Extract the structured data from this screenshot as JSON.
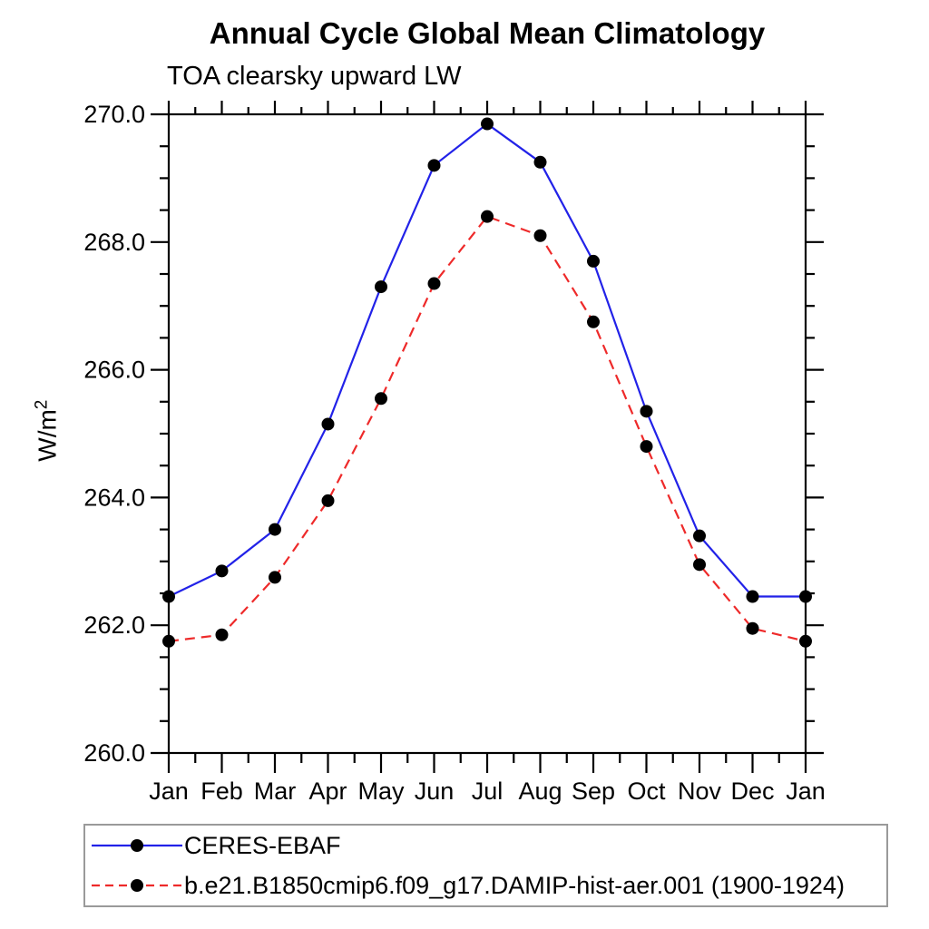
{
  "chart_data": {
    "type": "line",
    "title": "Annual Cycle Global Mean Climatology",
    "subtitle": "TOA clearsky upward LW",
    "ylabel_base": "W/m",
    "ylabel_exp": "2",
    "x_categories": [
      "Jan",
      "Feb",
      "Mar",
      "Apr",
      "May",
      "Jun",
      "Jul",
      "Aug",
      "Sep",
      "Oct",
      "Nov",
      "Dec",
      "Jan"
    ],
    "ylim": [
      260.0,
      270.0
    ],
    "y_ticks": [
      260.0,
      262.0,
      264.0,
      266.0,
      268.0,
      270.0
    ],
    "y_tick_labels": [
      "260.0",
      "262.0",
      "264.0",
      "266.0",
      "268.0",
      "270.0"
    ],
    "y_minor_step": 0.5,
    "grid": false,
    "legend_position": "bottom-left-box",
    "axis_color": "#000000",
    "marker_color": "#000000",
    "series": [
      {
        "name": "CERES-EBAF",
        "color": "#2222e8",
        "line_style": "solid",
        "marker": "circle",
        "values": [
          262.45,
          262.85,
          263.5,
          265.15,
          267.3,
          269.2,
          269.85,
          269.25,
          267.7,
          265.35,
          263.4,
          262.45,
          262.45
        ]
      },
      {
        "name": "b.e21.B1850cmip6.f09_g17.DAMIP-hist-aer.001 (1900-1924)",
        "color": "#ee2a2a",
        "line_style": "dashed",
        "marker": "circle",
        "values": [
          261.75,
          261.85,
          262.75,
          263.95,
          265.55,
          267.35,
          268.4,
          268.1,
          266.75,
          264.8,
          262.95,
          261.95,
          261.75
        ]
      }
    ]
  }
}
